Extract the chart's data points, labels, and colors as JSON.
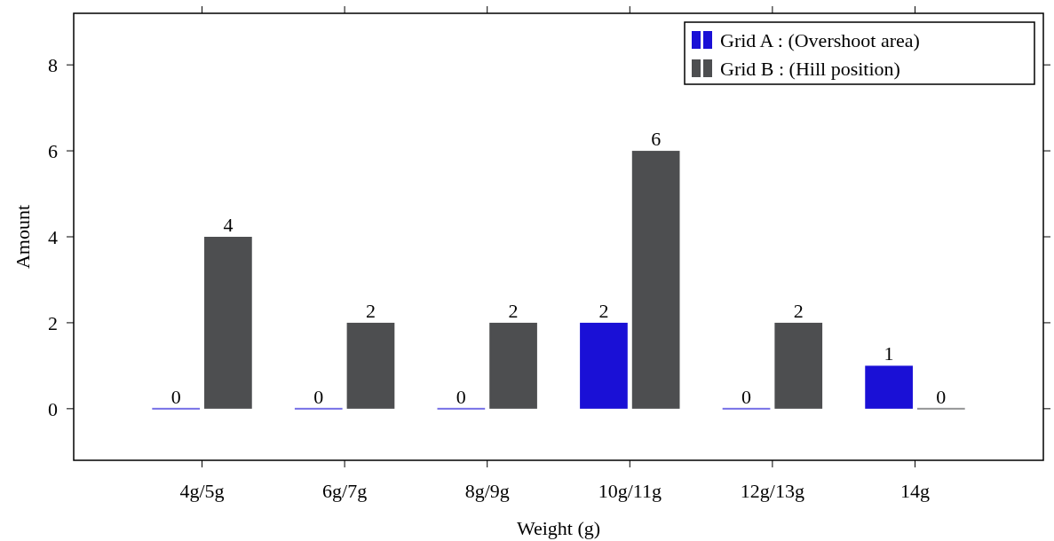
{
  "chart_data": {
    "type": "bar",
    "xlabel": "Weight (g)",
    "ylabel": "Amount",
    "categories": [
      "4g/5g",
      "6g/7g",
      "8g/9g",
      "10g/11g",
      "12g/13g",
      "14g"
    ],
    "series": [
      {
        "name": "Grid A : (Overshoot area)",
        "color": "#1a10d6",
        "values": [
          0,
          0,
          0,
          2,
          0,
          1
        ]
      },
      {
        "name": "Grid B : (Hill position)",
        "color": "#4d4e50",
        "values": [
          4,
          2,
          2,
          6,
          2,
          0
        ]
      }
    ],
    "ylim": [
      -1.2,
      9.2
    ],
    "yticks": [
      0,
      2,
      4,
      6,
      8
    ],
    "data_labels": true,
    "legend": "top right"
  }
}
